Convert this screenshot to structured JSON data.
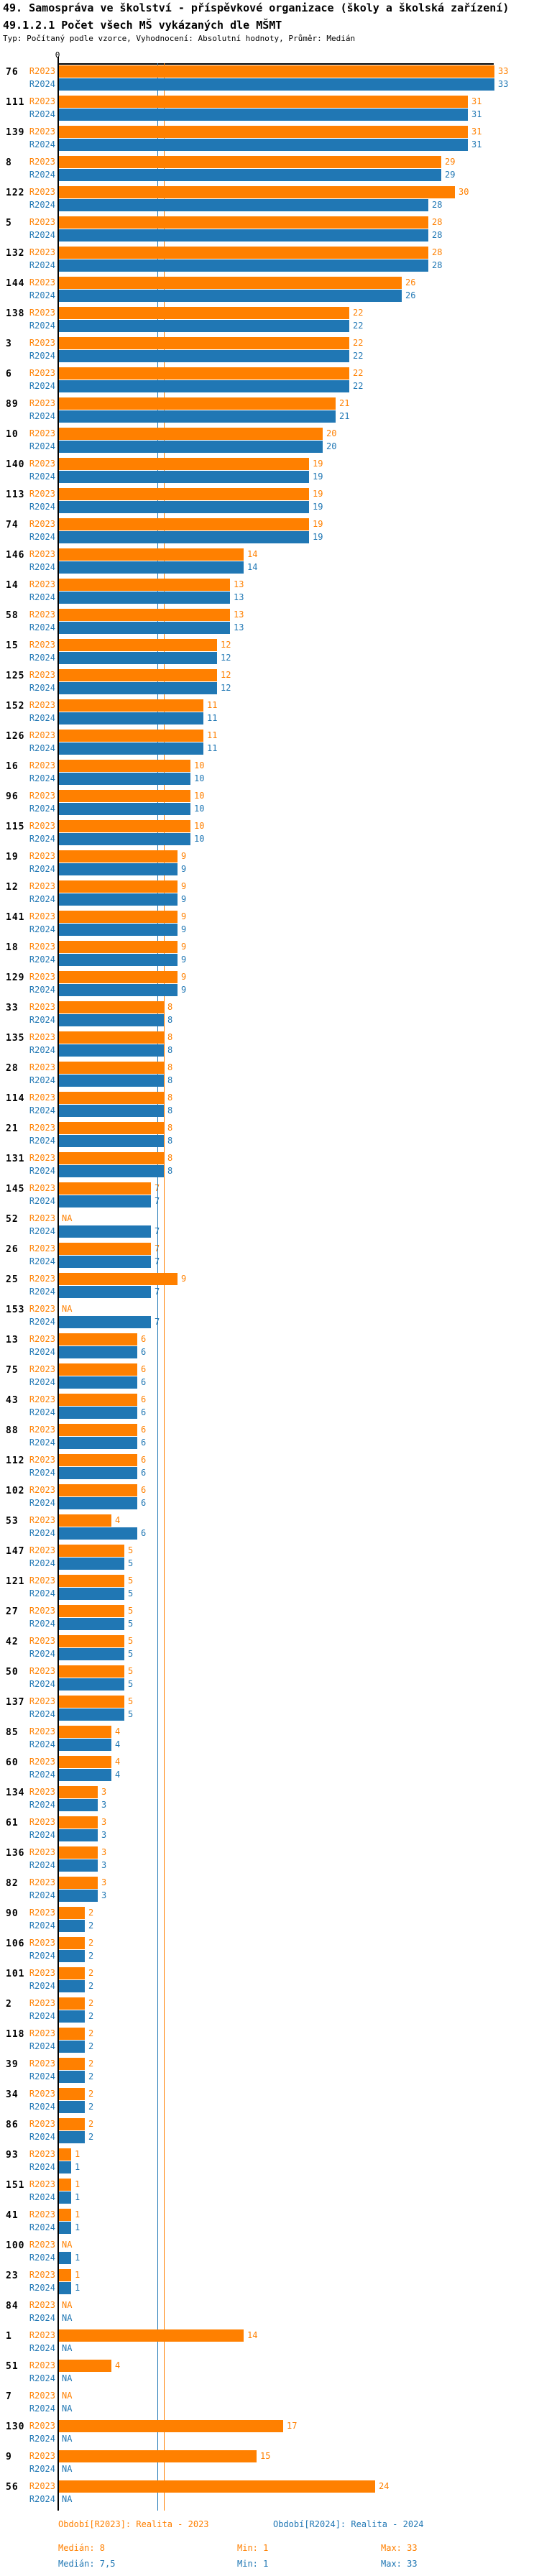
{
  "header": {
    "title_line1": "49. Samospráva ve školství - příspěvkové organizace (školy a školská zařízení)",
    "title_line2": "49.1.2.1 Počet všech MŠ vykázaných dle MŠMT",
    "subtitle": "Typ: Počítaný podle vzorce, Vyhodnocení: Absolutní hodnoty, Průměr: Medián"
  },
  "axis": {
    "zero_label": "0"
  },
  "colors": {
    "r2023_orange": "#ff8000",
    "r2024_blue": "#2077b4",
    "axis_black": "#000000"
  },
  "legend": {
    "r2023_label": "Období[R2023]: Realita - 2023",
    "r2024_label": "Období[R2024]: Realita - 2024"
  },
  "stats": {
    "r2023": {
      "median": "Medián: 8",
      "min": "Min: 1",
      "max": "Max: 33"
    },
    "r2024": {
      "median": "Medián: 7,5",
      "min": "Min: 1",
      "max": "Max: 33"
    }
  },
  "chart_data": {
    "type": "bar",
    "orientation": "horizontal",
    "title": "49.1.2.1 Počet všech MŠ vykázaných dle MŠMT",
    "series_names": [
      "R2023",
      "R2024"
    ],
    "na_label": "NA",
    "xlim": [
      0,
      33
    ],
    "medians": {
      "R2023": 8,
      "R2024": 7.5
    },
    "rows": [
      {
        "id": "76",
        "r2023": 33,
        "r2024": 33
      },
      {
        "id": "111",
        "r2023": 31,
        "r2024": 31
      },
      {
        "id": "139",
        "r2023": 31,
        "r2024": 31
      },
      {
        "id": "8",
        "r2023": 29,
        "r2024": 29
      },
      {
        "id": "122",
        "r2023": 30,
        "r2024": 28
      },
      {
        "id": "5",
        "r2023": 28,
        "r2024": 28
      },
      {
        "id": "132",
        "r2023": 28,
        "r2024": 28
      },
      {
        "id": "144",
        "r2023": 26,
        "r2024": 26
      },
      {
        "id": "138",
        "r2023": 22,
        "r2024": 22
      },
      {
        "id": "3",
        "r2023": 22,
        "r2024": 22
      },
      {
        "id": "6",
        "r2023": 22,
        "r2024": 22
      },
      {
        "id": "89",
        "r2023": 21,
        "r2024": 21
      },
      {
        "id": "10",
        "r2023": 20,
        "r2024": 20
      },
      {
        "id": "140",
        "r2023": 19,
        "r2024": 19
      },
      {
        "id": "113",
        "r2023": 19,
        "r2024": 19
      },
      {
        "id": "74",
        "r2023": 19,
        "r2024": 19
      },
      {
        "id": "146",
        "r2023": 14,
        "r2024": 14
      },
      {
        "id": "14",
        "r2023": 13,
        "r2024": 13
      },
      {
        "id": "58",
        "r2023": 13,
        "r2024": 13
      },
      {
        "id": "15",
        "r2023": 12,
        "r2024": 12
      },
      {
        "id": "125",
        "r2023": 12,
        "r2024": 12
      },
      {
        "id": "152",
        "r2023": 11,
        "r2024": 11
      },
      {
        "id": "126",
        "r2023": 11,
        "r2024": 11
      },
      {
        "id": "16",
        "r2023": 10,
        "r2024": 10
      },
      {
        "id": "96",
        "r2023": 10,
        "r2024": 10
      },
      {
        "id": "115",
        "r2023": 10,
        "r2024": 10
      },
      {
        "id": "19",
        "r2023": 9,
        "r2024": 9
      },
      {
        "id": "12",
        "r2023": 9,
        "r2024": 9
      },
      {
        "id": "141",
        "r2023": 9,
        "r2024": 9
      },
      {
        "id": "18",
        "r2023": 9,
        "r2024": 9
      },
      {
        "id": "129",
        "r2023": 9,
        "r2024": 9
      },
      {
        "id": "33",
        "r2023": 8,
        "r2024": 8
      },
      {
        "id": "135",
        "r2023": 8,
        "r2024": 8
      },
      {
        "id": "28",
        "r2023": 8,
        "r2024": 8
      },
      {
        "id": "114",
        "r2023": 8,
        "r2024": 8
      },
      {
        "id": "21",
        "r2023": 8,
        "r2024": 8
      },
      {
        "id": "131",
        "r2023": 8,
        "r2024": 8
      },
      {
        "id": "145",
        "r2023": 7,
        "r2024": 7
      },
      {
        "id": "52",
        "r2023": null,
        "r2024": 7
      },
      {
        "id": "26",
        "r2023": 7,
        "r2024": 7
      },
      {
        "id": "25",
        "r2023": 9,
        "r2024": 7
      },
      {
        "id": "153",
        "r2023": null,
        "r2024": 7
      },
      {
        "id": "13",
        "r2023": 6,
        "r2024": 6
      },
      {
        "id": "75",
        "r2023": 6,
        "r2024": 6
      },
      {
        "id": "43",
        "r2023": 6,
        "r2024": 6
      },
      {
        "id": "88",
        "r2023": 6,
        "r2024": 6
      },
      {
        "id": "112",
        "r2023": 6,
        "r2024": 6
      },
      {
        "id": "102",
        "r2023": 6,
        "r2024": 6
      },
      {
        "id": "53",
        "r2023": 4,
        "r2024": 6
      },
      {
        "id": "147",
        "r2023": 5,
        "r2024": 5
      },
      {
        "id": "121",
        "r2023": 5,
        "r2024": 5
      },
      {
        "id": "27",
        "r2023": 5,
        "r2024": 5
      },
      {
        "id": "42",
        "r2023": 5,
        "r2024": 5
      },
      {
        "id": "50",
        "r2023": 5,
        "r2024": 5
      },
      {
        "id": "137",
        "r2023": 5,
        "r2024": 5
      },
      {
        "id": "85",
        "r2023": 4,
        "r2024": 4
      },
      {
        "id": "60",
        "r2023": 4,
        "r2024": 4
      },
      {
        "id": "134",
        "r2023": 3,
        "r2024": 3
      },
      {
        "id": "61",
        "r2023": 3,
        "r2024": 3
      },
      {
        "id": "136",
        "r2023": 3,
        "r2024": 3
      },
      {
        "id": "82",
        "r2023": 3,
        "r2024": 3
      },
      {
        "id": "90",
        "r2023": 2,
        "r2024": 2
      },
      {
        "id": "106",
        "r2023": 2,
        "r2024": 2
      },
      {
        "id": "101",
        "r2023": 2,
        "r2024": 2
      },
      {
        "id": "2",
        "r2023": 2,
        "r2024": 2
      },
      {
        "id": "118",
        "r2023": 2,
        "r2024": 2
      },
      {
        "id": "39",
        "r2023": 2,
        "r2024": 2
      },
      {
        "id": "34",
        "r2023": 2,
        "r2024": 2
      },
      {
        "id": "86",
        "r2023": 2,
        "r2024": 2
      },
      {
        "id": "93",
        "r2023": 1,
        "r2024": 1
      },
      {
        "id": "151",
        "r2023": 1,
        "r2024": 1
      },
      {
        "id": "41",
        "r2023": 1,
        "r2024": 1
      },
      {
        "id": "100",
        "r2023": null,
        "r2024": 1
      },
      {
        "id": "23",
        "r2023": 1,
        "r2024": 1
      },
      {
        "id": "84",
        "r2023": null,
        "r2024": null
      },
      {
        "id": "1",
        "r2023": 14,
        "r2024": null
      },
      {
        "id": "51",
        "r2023": 4,
        "r2024": null
      },
      {
        "id": "7",
        "r2023": null,
        "r2024": null
      },
      {
        "id": "130",
        "r2023": 17,
        "r2024": null
      },
      {
        "id": "9",
        "r2023": 15,
        "r2024": null
      },
      {
        "id": "56",
        "r2023": 24,
        "r2024": null
      }
    ]
  }
}
